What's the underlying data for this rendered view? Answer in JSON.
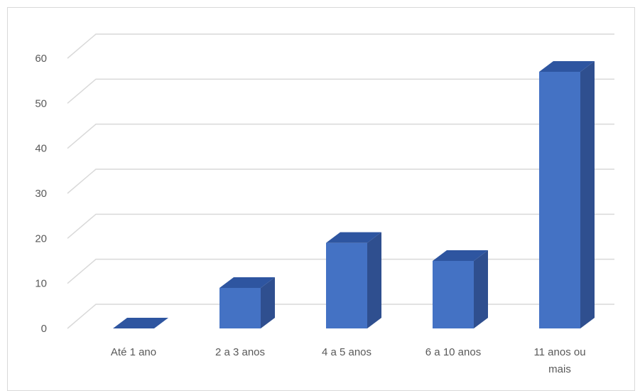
{
  "chart_data": {
    "type": "bar",
    "style": "3d-column",
    "title": "",
    "xlabel": "",
    "ylabel": "",
    "categories": [
      "Até 1 ano",
      "2 a 3 anos",
      "4 a 5 anos",
      "6 a 10 anos",
      "11 anos ou mais"
    ],
    "category_lines": [
      [
        "Até 1 ano"
      ],
      [
        "2 a 3 anos"
      ],
      [
        "4 a 5 anos"
      ],
      [
        "6 a 10 anos"
      ],
      [
        "11 anos ou",
        "mais"
      ]
    ],
    "values": [
      0,
      9,
      19,
      15,
      57
    ],
    "ylim": [
      0,
      60
    ],
    "yticks": [
      "0",
      "10",
      "20",
      "30",
      "40",
      "50",
      "60"
    ],
    "grid": true,
    "legend": "none",
    "colors": {
      "front": "#4472c4",
      "side": "#2f4f8f",
      "top": "#2e55a0",
      "grid": "#d9d9d9",
      "text": "#595959"
    }
  }
}
